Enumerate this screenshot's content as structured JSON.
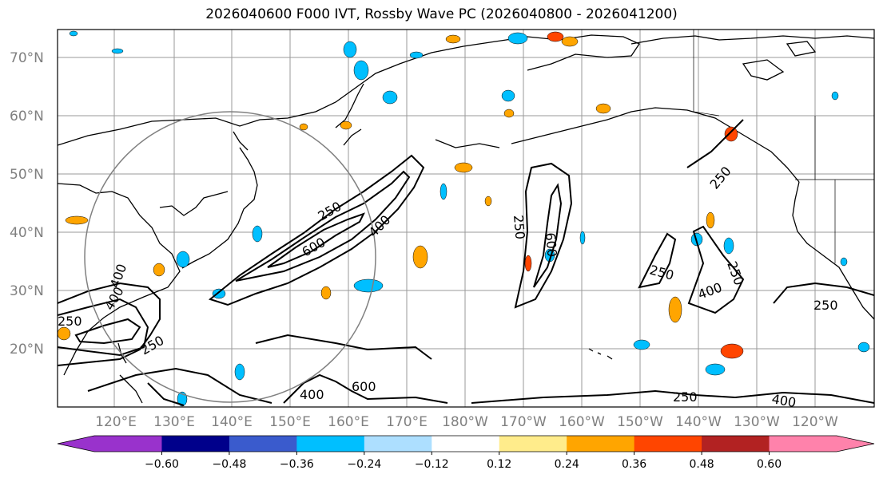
{
  "title": "2026040600 F000 IVT, Rossby Wave PC (2026040800 - 2026041200)",
  "lat_labels": [
    "70°N",
    "60°N",
    "50°N",
    "40°N",
    "30°N",
    "20°N"
  ],
  "lon_labels": [
    "120°E",
    "130°E",
    "140°E",
    "150°E",
    "160°E",
    "170°E",
    "180°W",
    "170°W",
    "160°W",
    "150°W",
    "140°W",
    "130°W",
    "120°W"
  ],
  "contour_labels": [
    "250",
    "600",
    "400",
    "250",
    "600",
    "400",
    "250",
    "400",
    "250",
    "250",
    "400",
    "250",
    "250",
    "250",
    "400",
    "600",
    "250",
    "400"
  ],
  "colorbar": {
    "colors": [
      "#9932CC",
      "#00008B",
      "#3A5BCD",
      "#00BFFF",
      "#ADDFFF",
      "#FFFFFF",
      "#FFEC8B",
      "#FFA500",
      "#FF4500",
      "#B22222",
      "#FF82AB"
    ],
    "ticks": [
      "−0.60",
      "−0.48",
      "−0.36",
      "−0.24",
      "−0.12",
      "0.12",
      "0.24",
      "0.36",
      "0.48",
      "0.60"
    ]
  }
}
